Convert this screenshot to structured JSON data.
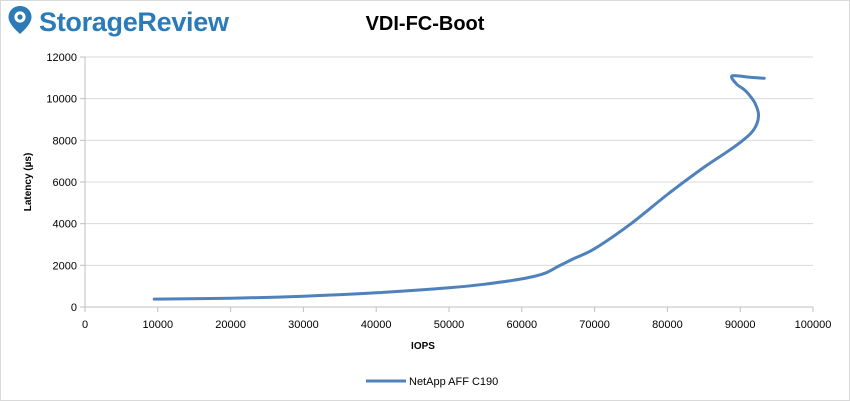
{
  "brand": {
    "name": "StorageReview",
    "icon": "storagereview-pin-icon",
    "color": "#2b7bb8"
  },
  "chart_data": {
    "type": "line",
    "title": "VDI-FC-Boot",
    "xlabel": "IOPS",
    "ylabel": "Latency (µs)",
    "xlim": [
      0,
      100000
    ],
    "ylim": [
      0,
      12000
    ],
    "x_ticks": [
      "0",
      "10000",
      "20000",
      "30000",
      "40000",
      "50000",
      "60000",
      "70000",
      "80000",
      "90000",
      "100000"
    ],
    "y_ticks": [
      "0",
      "2000",
      "4000",
      "6000",
      "8000",
      "10000",
      "12000"
    ],
    "grid": "horizontal",
    "legend_position": "bottom",
    "series": [
      {
        "name": "NetApp AFF C190",
        "color": "#4f81bd",
        "x": [
          9500,
          20000,
          30000,
          40000,
          50000,
          55000,
          60000,
          63000,
          65000,
          67000,
          70000,
          75000,
          80000,
          85000,
          88000,
          90000,
          91500,
          92300,
          92500,
          92000,
          91200,
          90500,
          89500,
          88800,
          89500,
          91500,
          93300
        ],
        "y": [
          380,
          420,
          520,
          680,
          920,
          1100,
          1350,
          1600,
          1950,
          2300,
          2800,
          4000,
          5400,
          6700,
          7400,
          7900,
          8350,
          8800,
          9300,
          9800,
          10200,
          10450,
          10700,
          11050,
          11100,
          11020,
          10980
        ]
      }
    ]
  }
}
